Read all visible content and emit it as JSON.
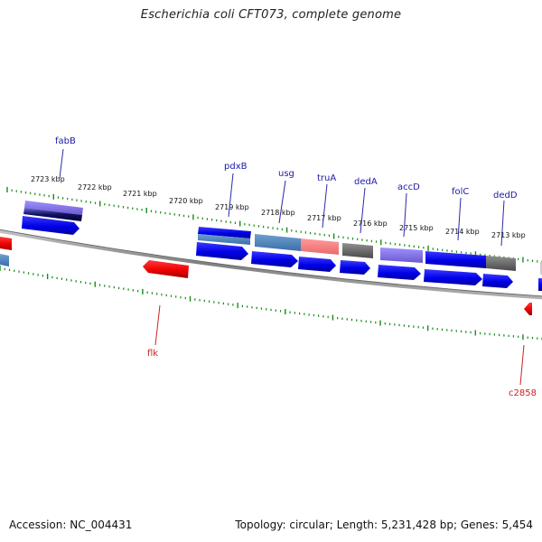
{
  "title": "Escherichia coli CFT073, complete genome",
  "footer": {
    "accession": "Accession: NC_004431",
    "summary": "Topology: circular; Length: 5,231,428 bp; Genes: 5,454"
  },
  "ticks": [
    {
      "label": "2723 kbp"
    },
    {
      "label": "2722 kbp"
    },
    {
      "label": "2721 kbp"
    },
    {
      "label": "2720 kbp"
    },
    {
      "label": "2719 kbp"
    },
    {
      "label": "2718 kbp"
    },
    {
      "label": "2717 kbp"
    },
    {
      "label": "2716 kbp"
    },
    {
      "label": "2715 kbp"
    },
    {
      "label": "2714 kbp"
    },
    {
      "label": "2713 kbp"
    }
  ],
  "gene_labels": [
    {
      "name": "fabB",
      "strand": "plus"
    },
    {
      "name": "pdxB",
      "strand": "plus"
    },
    {
      "name": "usg",
      "strand": "plus"
    },
    {
      "name": "truA",
      "strand": "plus"
    },
    {
      "name": "dedA",
      "strand": "plus"
    },
    {
      "name": "accD",
      "strand": "plus"
    },
    {
      "name": "folC",
      "strand": "plus"
    },
    {
      "name": "dedD",
      "strand": "plus"
    },
    {
      "name": "flk",
      "strand": "minus"
    },
    {
      "name": "c2858",
      "strand": "minus"
    }
  ],
  "colors": {
    "gene_plus": "#0000ee",
    "gene_minus": "#ee0000",
    "tick": "#1a8a1a",
    "backbone": "#808080",
    "label_plus": "#1a1aa6",
    "label_minus": "#cc2020"
  }
}
